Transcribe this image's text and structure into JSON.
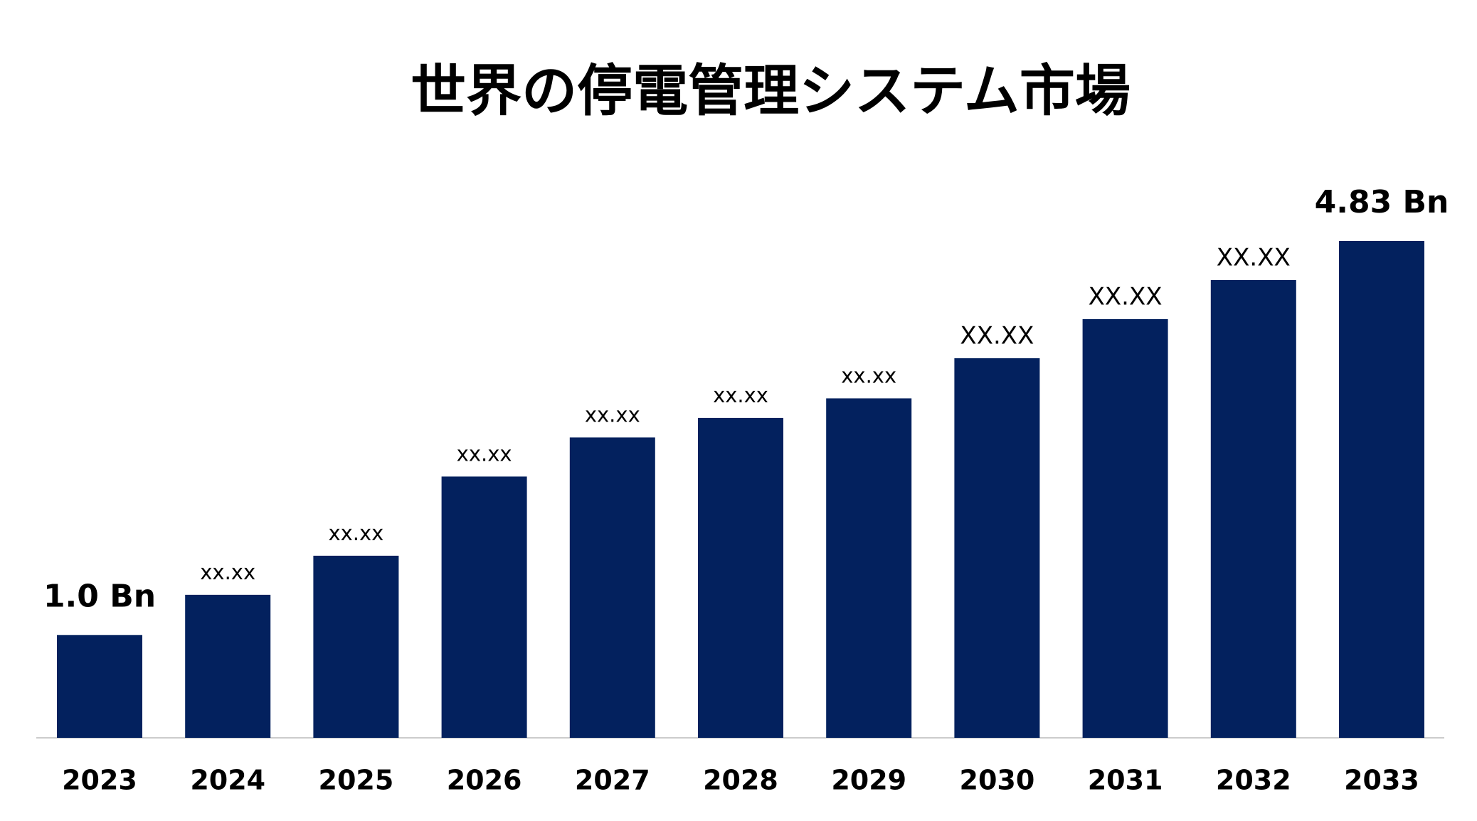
{
  "chart_data": {
    "type": "bar",
    "title": "世界の停電管理システム市場",
    "categories": [
      "2023",
      "2024",
      "2025",
      "2026",
      "2027",
      "2028",
      "2029",
      "2030",
      "2031",
      "2032",
      "2033"
    ],
    "values": [
      1.0,
      1.39,
      1.77,
      2.54,
      2.92,
      3.11,
      3.3,
      3.69,
      4.07,
      4.45,
      4.83
    ],
    "value_labels": [
      "1.0 Bn",
      "xx.xx",
      "xx.xx",
      "xx.xx",
      "xx.xx",
      "xx.xx",
      "xx.xx",
      "XX.XX",
      "XX.XX",
      "XX.XX",
      "4.83 Bn"
    ],
    "color": "#03215e"
  }
}
